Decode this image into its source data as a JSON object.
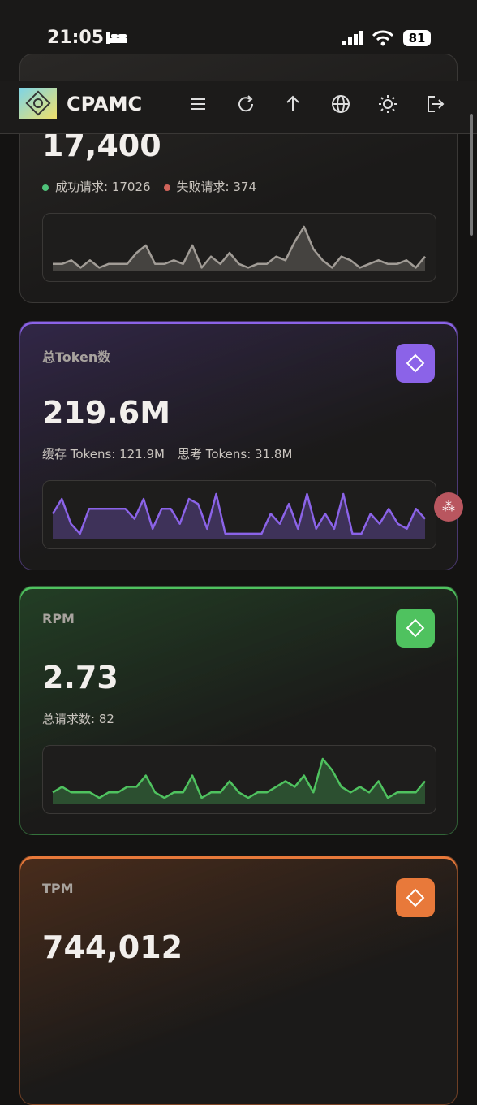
{
  "status_bar": {
    "time": "21:05",
    "battery": "81"
  },
  "header": {
    "brand": "CPAMC"
  },
  "cards": [
    {
      "value": "17,400",
      "sub": [
        "成功请求: 17026",
        "失败请求: 374"
      ],
      "color": "#a19c96",
      "spark": [
        2,
        2,
        3,
        1,
        3,
        1,
        2,
        2,
        2,
        5,
        7,
        2,
        2,
        3,
        2,
        7,
        1,
        4,
        2,
        5,
        2,
        1,
        2,
        2,
        4,
        3,
        8,
        12,
        6,
        3,
        1,
        4,
        3,
        1,
        2,
        3,
        2,
        2,
        3,
        1,
        4
      ]
    },
    {
      "label": "总Token数",
      "value": "219.6M",
      "sub": [
        "缓存 Tokens: 121.9M",
        "思考 Tokens: 31.8M"
      ],
      "color": "#8b63e8",
      "spark": [
        5,
        8,
        3,
        1,
        6,
        6,
        6,
        6,
        6,
        4,
        8,
        2,
        6,
        6,
        3,
        8,
        7,
        2,
        9,
        1,
        1,
        1,
        1,
        1,
        5,
        3,
        7,
        2,
        9,
        2,
        5,
        2,
        9,
        1,
        1,
        5,
        3,
        6,
        3,
        2,
        6,
        4
      ]
    },
    {
      "label": "RPM",
      "value": "2.73",
      "sub": [
        "总请求数: 82"
      ],
      "color": "#4fc25f",
      "spark": [
        2,
        3,
        2,
        2,
        2,
        1,
        2,
        2,
        3,
        3,
        5,
        2,
        1,
        2,
        2,
        5,
        1,
        2,
        2,
        4,
        2,
        1,
        2,
        2,
        3,
        4,
        3,
        5,
        2,
        8,
        6,
        3,
        2,
        3,
        2,
        4,
        1,
        2,
        2,
        2,
        4
      ]
    },
    {
      "label": "TPM",
      "value": "744,012",
      "color": "#e8793a"
    }
  ]
}
